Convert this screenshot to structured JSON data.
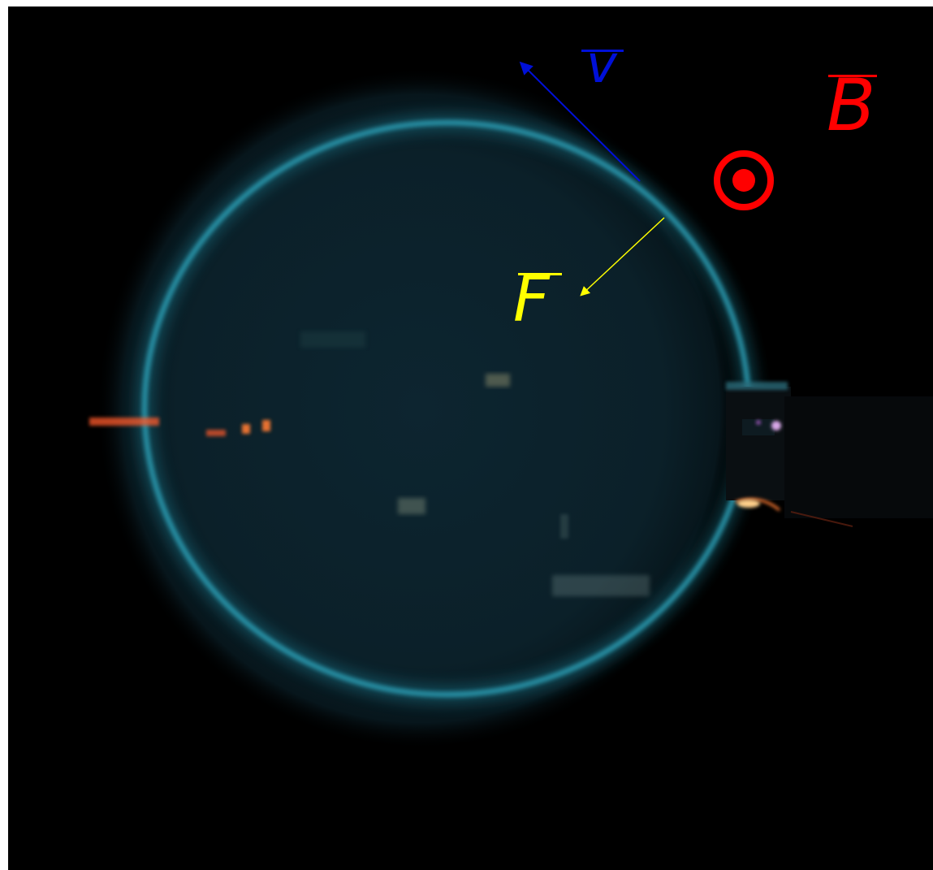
{
  "figure": {
    "description_free": true,
    "background_color": "#000000",
    "beam_color": "#2a9ab0",
    "tube_glow_color": "#0f2a33"
  },
  "labels": {
    "velocity": {
      "text": "v",
      "color": "#0010d8"
    },
    "field": {
      "text": "B",
      "color": "#ff0000"
    },
    "force": {
      "text": "F",
      "color": "#ffff00"
    }
  },
  "icons": {
    "field_out_of_page": "dot-in-circle-icon",
    "velocity_arrow": "arrow-icon",
    "force_arrow": "arrow-icon"
  }
}
